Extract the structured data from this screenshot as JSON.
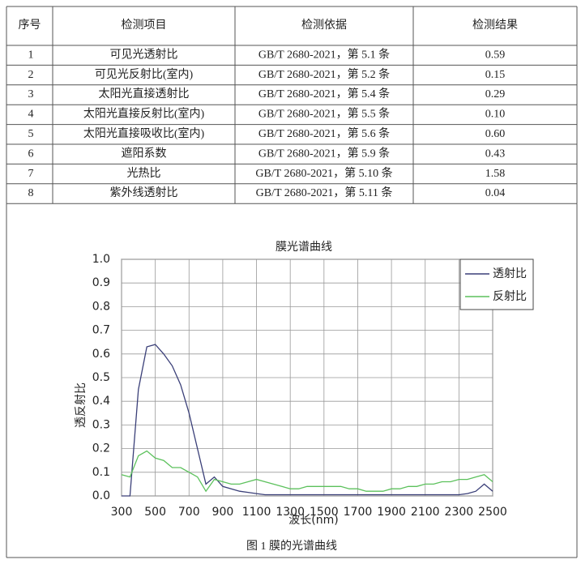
{
  "table": {
    "header": [
      "序号",
      "检测项目",
      "检测依据",
      "检测结果"
    ],
    "rows": [
      [
        "1",
        "可见光透射比",
        "GB/T 2680-2021，第 5.1 条",
        "0.59"
      ],
      [
        "2",
        "可见光反射比(室内)",
        "GB/T 2680-2021，第 5.2 条",
        "0.15"
      ],
      [
        "3",
        "太阳光直接透射比",
        "GB/T 2680-2021，第 5.4 条",
        "0.29"
      ],
      [
        "4",
        "太阳光直接反射比(室内)",
        "GB/T 2680-2021，第 5.5 条",
        "0.10"
      ],
      [
        "5",
        "太阳光直接吸收比(室内)",
        "GB/T 2680-2021，第 5.6 条",
        "0.60"
      ],
      [
        "6",
        "遮阳系数",
        "GB/T 2680-2021，第 5.9 条",
        "0.43"
      ],
      [
        "7",
        "光热比",
        "GB/T 2680-2021，第 5.10 条",
        "1.58"
      ],
      [
        "8",
        "紫外线透射比",
        "GB/T 2680-2021，第 5.11 条",
        "0.04"
      ]
    ]
  },
  "chart_data": {
    "type": "line",
    "title": "膜光谱曲线",
    "x_label": "波长(nm)",
    "y_label": "透反射比",
    "xlim": [
      300,
      2500
    ],
    "ylim": [
      0,
      1
    ],
    "xticks": [
      300,
      500,
      700,
      900,
      1100,
      1300,
      1500,
      1700,
      1900,
      2100,
      2300,
      2500
    ],
    "yticks": [
      {
        "value": 0,
        "label": "0.0"
      },
      0.1,
      0.2,
      0.3,
      0.4,
      0.5,
      0.6,
      0.7,
      0.8,
      0.9,
      {
        "value": 1,
        "label": "1.0"
      }
    ],
    "grid": true,
    "legend": "upper right",
    "x": [
      300,
      350,
      400,
      450,
      500,
      550,
      600,
      650,
      700,
      750,
      800,
      850,
      900,
      950,
      1000,
      1050,
      1100,
      1150,
      1200,
      1250,
      1300,
      1350,
      1400,
      1450,
      1500,
      1550,
      1600,
      1650,
      1700,
      1750,
      1800,
      1850,
      1900,
      1950,
      2000,
      2050,
      2100,
      2150,
      2200,
      2250,
      2300,
      2350,
      2400,
      2450,
      2500
    ],
    "series": [
      {
        "name": "透射比",
        "color": "#3a3f78",
        "values": [
          0,
          0,
          0.45,
          0.63,
          0.64,
          0.6,
          0.55,
          0.47,
          0.35,
          0.2,
          0.05,
          0.08,
          0.04,
          0.03,
          0.02,
          0.015,
          0.01,
          0.005,
          0.005,
          0.005,
          0.005,
          0.005,
          0.005,
          0.005,
          0.005,
          0.005,
          0.005,
          0.005,
          0.005,
          0.005,
          0.005,
          0.005,
          0.005,
          0.005,
          0.005,
          0.005,
          0.005,
          0.005,
          0.005,
          0.005,
          0.005,
          0.01,
          0.02,
          0.05,
          0.02
        ]
      },
      {
        "name": "反射比",
        "color": "#5cc15c",
        "values": [
          0.09,
          0.08,
          0.17,
          0.19,
          0.16,
          0.15,
          0.12,
          0.12,
          0.1,
          0.08,
          0.02,
          0.07,
          0.06,
          0.05,
          0.05,
          0.06,
          0.07,
          0.06,
          0.05,
          0.04,
          0.03,
          0.03,
          0.04,
          0.04,
          0.04,
          0.04,
          0.04,
          0.03,
          0.03,
          0.02,
          0.02,
          0.02,
          0.03,
          0.03,
          0.04,
          0.04,
          0.05,
          0.05,
          0.06,
          0.06,
          0.07,
          0.07,
          0.08,
          0.09,
          0.06
        ]
      }
    ]
  },
  "caption": "图 1 膜的光谱曲线"
}
